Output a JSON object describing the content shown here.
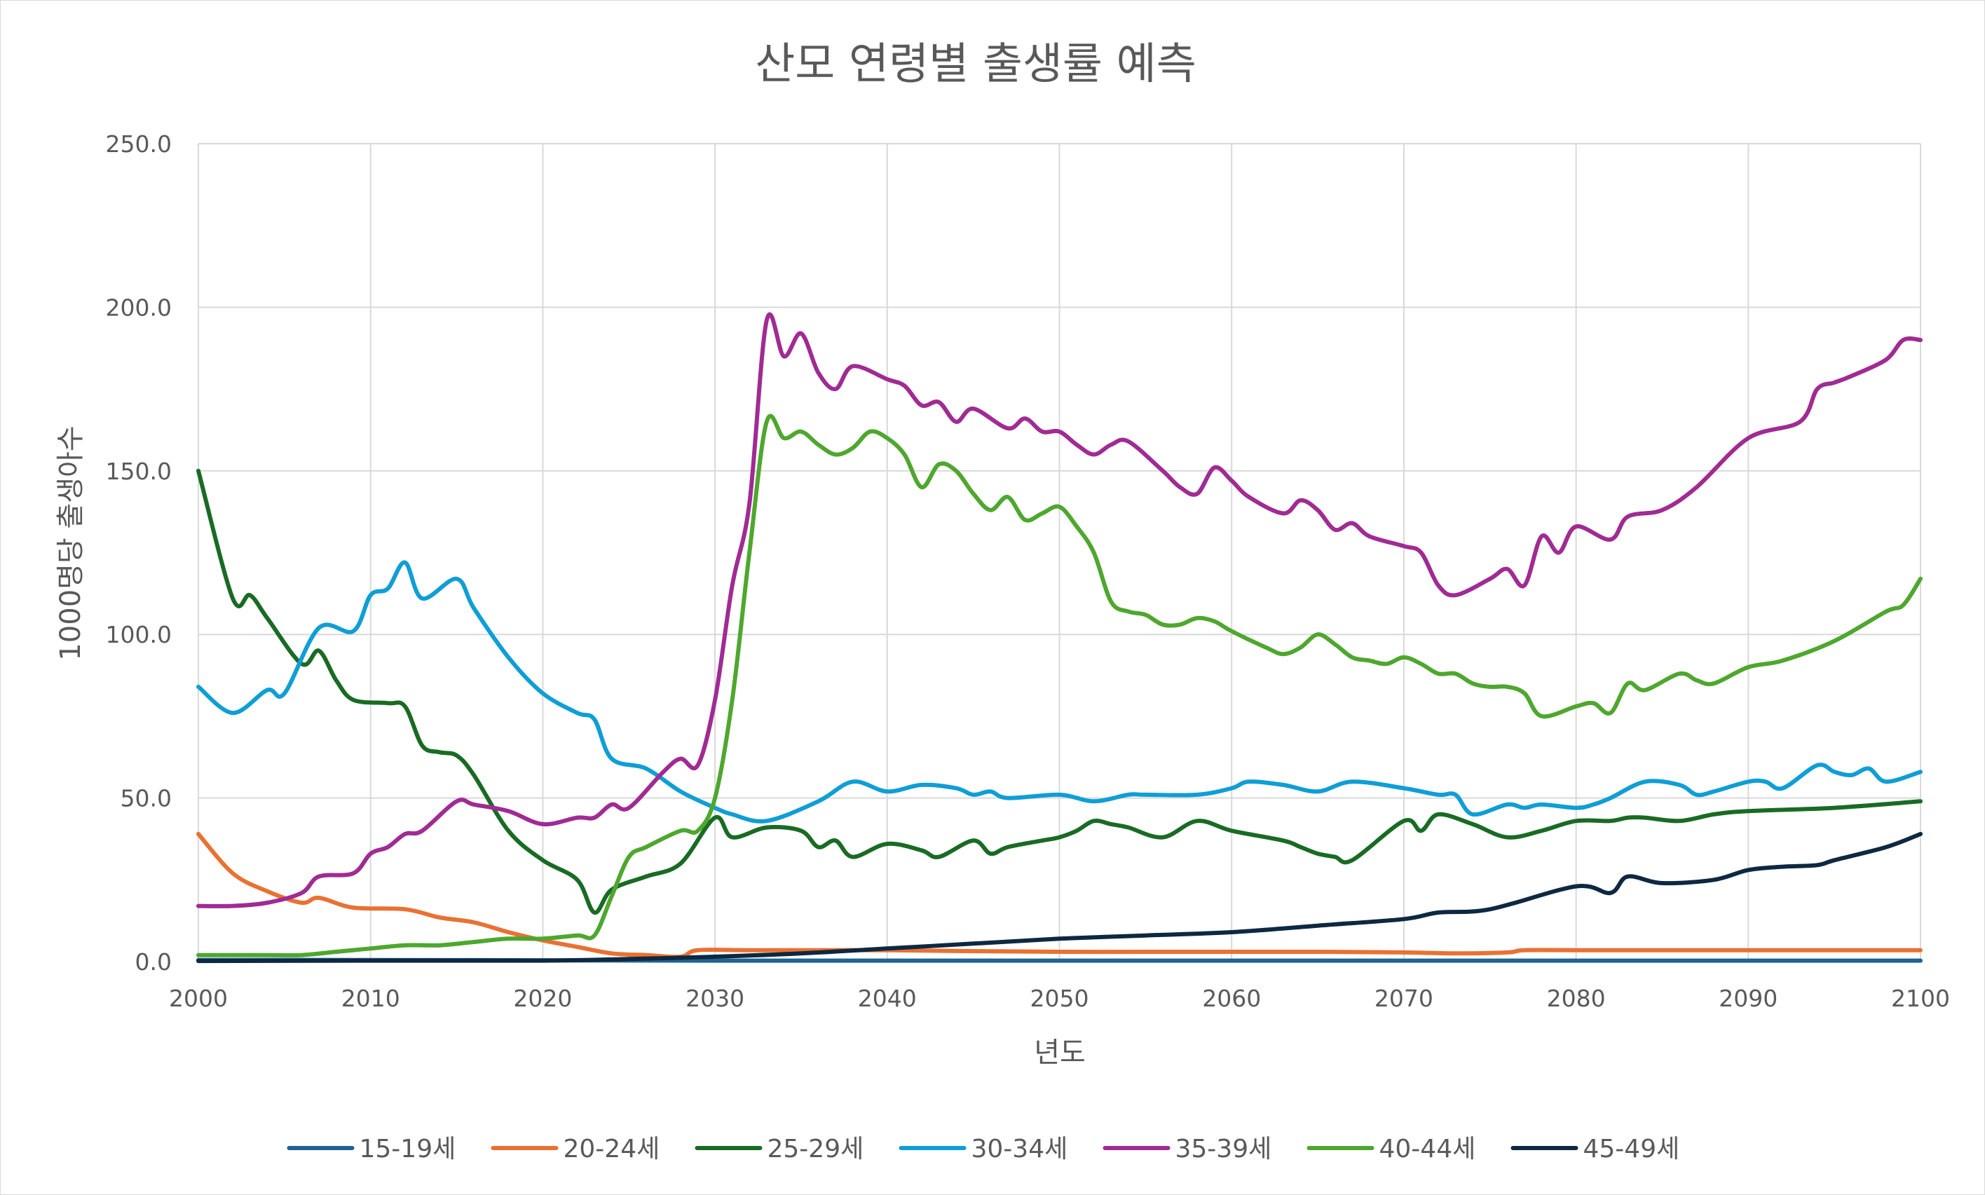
{
  "chart_data": {
    "type": "line",
    "title": "산모 연령별 출생률 예측",
    "xlabel": "년도",
    "ylabel": "1000명당 출생아수",
    "xlim": [
      2000,
      2100
    ],
    "ylim": [
      0,
      250
    ],
    "x_ticks": [
      "2000",
      "2010",
      "2020",
      "2030",
      "2040",
      "2050",
      "2060",
      "2070",
      "2080",
      "2090",
      "2100"
    ],
    "y_ticks": [
      "0.0",
      "50.0",
      "100.0",
      "150.0",
      "200.0",
      "250.0"
    ],
    "legend_position": "bottom",
    "grid": true,
    "series": [
      {
        "name": "15-19세",
        "color": "#1f6391",
        "x": [
          2000,
          2010,
          2020,
          2030,
          2040,
          2050,
          2060,
          2070,
          2080,
          2090,
          2100
        ],
        "y": [
          0.5,
          0.5,
          0.4,
          0.3,
          0.3,
          0.3,
          0.3,
          0.3,
          0.3,
          0.3,
          0.3
        ]
      },
      {
        "name": "20-24세",
        "color": "#e97132",
        "x": [
          2000,
          2002,
          2004,
          2006,
          2007,
          2009,
          2012,
          2014,
          2016,
          2018,
          2020,
          2022,
          2024,
          2026,
          2028,
          2029,
          2032,
          2036,
          2040,
          2045,
          2050,
          2055,
          2060,
          2065,
          2070,
          2073,
          2076,
          2077,
          2080,
          2090,
          2100
        ],
        "y": [
          39,
          27,
          21.5,
          18,
          19.5,
          16.5,
          16,
          13.5,
          12,
          9,
          6.5,
          4.5,
          2.5,
          2,
          1.5,
          3.5,
          3.5,
          3.5,
          3.5,
          3.2,
          3,
          3,
          3,
          3,
          2.8,
          2.5,
          2.8,
          3.5,
          3.5,
          3.5,
          3.5
        ]
      },
      {
        "name": "25-29세",
        "color": "#196b24",
        "x": [
          2000,
          2002,
          2003,
          2004,
          2006,
          2007,
          2008,
          2009,
          2011,
          2012,
          2013,
          2014,
          2015,
          2016,
          2018,
          2020,
          2022,
          2023,
          2024,
          2026,
          2028,
          2030,
          2031,
          2033,
          2035,
          2036,
          2037,
          2038,
          2040,
          2042,
          2043,
          2045,
          2046,
          2047,
          2049,
          2050,
          2051,
          2052,
          2053,
          2054,
          2056,
          2058,
          2060,
          2063,
          2064,
          2065,
          2066,
          2067,
          2070,
          2071,
          2072,
          2074,
          2076,
          2078,
          2080,
          2082,
          2083,
          2084,
          2086,
          2088,
          2090,
          2095,
          2100
        ],
        "y": [
          150,
          111,
          112,
          105,
          91,
          95,
          86,
          80,
          79,
          78,
          66,
          64,
          63,
          57,
          40,
          31,
          25,
          15,
          22,
          26,
          30,
          44,
          38,
          41,
          40,
          35,
          37,
          32,
          36,
          34,
          32,
          37,
          33,
          35,
          37,
          38,
          40,
          43,
          42,
          41,
          38,
          43,
          40,
          37,
          35,
          33,
          32,
          31,
          43,
          40,
          45,
          42,
          38,
          40,
          43,
          43,
          44,
          44,
          43,
          45,
          46,
          47,
          49
        ]
      },
      {
        "name": "30-34세",
        "color": "#0f9ed5",
        "x": [
          2000,
          2002,
          2004,
          2005,
          2007,
          2009,
          2010,
          2011,
          2012,
          2013,
          2015,
          2016,
          2018,
          2020,
          2022,
          2023,
          2024,
          2026,
          2028,
          2030,
          2031,
          2033,
          2036,
          2038,
          2040,
          2042,
          2044,
          2045,
          2046,
          2047,
          2050,
          2052,
          2054,
          2055,
          2058,
          2060,
          2061,
          2063,
          2065,
          2067,
          2070,
          2072,
          2073,
          2074,
          2076,
          2077,
          2078,
          2080,
          2081,
          2082,
          2084,
          2086,
          2087,
          2088,
          2090,
          2091,
          2092,
          2094,
          2095,
          2096,
          2097,
          2098,
          2100
        ],
        "y": [
          84,
          76,
          83,
          82,
          102,
          101,
          112,
          114,
          122,
          111,
          117,
          108,
          93,
          82,
          76,
          74,
          62,
          59,
          52,
          47,
          45,
          43,
          49,
          55,
          52,
          54,
          53,
          51,
          52,
          50,
          51,
          49,
          51,
          51,
          51,
          53,
          55,
          54,
          52,
          55,
          53,
          51,
          51,
          45,
          48,
          47,
          48,
          47,
          48,
          50,
          55,
          54,
          51,
          52,
          55,
          55,
          53,
          60,
          58,
          57,
          59,
          55,
          58
        ]
      },
      {
        "name": "35-39세",
        "color": "#a02b93",
        "x": [
          2000,
          2002,
          2004,
          2006,
          2007,
          2009,
          2010,
          2011,
          2012,
          2013,
          2015,
          2016,
          2018,
          2020,
          2022,
          2023,
          2024,
          2025,
          2027,
          2028,
          2029,
          2030,
          2031,
          2032,
          2033,
          2034,
          2035,
          2036,
          2037,
          2038,
          2040,
          2041,
          2042,
          2043,
          2044,
          2045,
          2047,
          2048,
          2049,
          2050,
          2051,
          2052,
          2053,
          2054,
          2056,
          2057,
          2058,
          2059,
          2060,
          2061,
          2063,
          2064,
          2065,
          2066,
          2067,
          2068,
          2070,
          2071,
          2072,
          2073,
          2075,
          2076,
          2077,
          2078,
          2079,
          2080,
          2082,
          2083,
          2085,
          2087,
          2090,
          2093,
          2094,
          2095,
          2096,
          2098,
          2099,
          2100
        ],
        "y": [
          17,
          17,
          18,
          21,
          26,
          27,
          33,
          35,
          39,
          40,
          49,
          48,
          46,
          42,
          44,
          44,
          48,
          47,
          58,
          62,
          60,
          80,
          115,
          140,
          196,
          185,
          192,
          180,
          175,
          182,
          178,
          176,
          170,
          171,
          165,
          169,
          163,
          166,
          162,
          162,
          158,
          155,
          158,
          159,
          150,
          145,
          143,
          151,
          147,
          142,
          137,
          141,
          138,
          132,
          134,
          130,
          127,
          125,
          115,
          112,
          117,
          120,
          115,
          130,
          125,
          133,
          129,
          136,
          138,
          145,
          160,
          165,
          175,
          177,
          179,
          184,
          190,
          190
        ]
      },
      {
        "name": "40-44세",
        "color": "#4ea72e",
        "x": [
          2000,
          2002,
          2004,
          2006,
          2008,
          2010,
          2012,
          2014,
          2016,
          2018,
          2020,
          2022,
          2023,
          2024,
          2025,
          2026,
          2028,
          2029,
          2030,
          2031,
          2032,
          2033,
          2034,
          2035,
          2036,
          2037,
          2038,
          2039,
          2040,
          2041,
          2042,
          2043,
          2044,
          2045,
          2046,
          2047,
          2048,
          2049,
          2050,
          2051,
          2052,
          2053,
          2054,
          2055,
          2056,
          2057,
          2058,
          2059,
          2060,
          2062,
          2063,
          2064,
          2065,
          2066,
          2067,
          2068,
          2069,
          2070,
          2071,
          2072,
          2073,
          2074,
          2075,
          2076,
          2077,
          2078,
          2080,
          2081,
          2082,
          2083,
          2084,
          2086,
          2087,
          2088,
          2090,
          2092,
          2095,
          2098,
          2099,
          2100
        ],
        "y": [
          2,
          2,
          2,
          2,
          3,
          4,
          5,
          5,
          6,
          7,
          7,
          8,
          8,
          20,
          32,
          35,
          40,
          40,
          50,
          80,
          125,
          165,
          160,
          162,
          158,
          155,
          157,
          162,
          160,
          155,
          145,
          152,
          150,
          143,
          138,
          142,
          135,
          137,
          139,
          133,
          125,
          110,
          107,
          106,
          103,
          103,
          105,
          104,
          101,
          96,
          94,
          96,
          100,
          97,
          93,
          92,
          91,
          93,
          91,
          88,
          88,
          85,
          84,
          84,
          82,
          75,
          78,
          79,
          76,
          85,
          83,
          88,
          86,
          85,
          90,
          92,
          98,
          107,
          109,
          117
        ]
      },
      {
        "name": "45-49세",
        "color": "#0e2841",
        "x": [
          2000,
          2010,
          2020,
          2025,
          2030,
          2035,
          2040,
          2045,
          2050,
          2055,
          2060,
          2065,
          2070,
          2072,
          2075,
          2080,
          2082,
          2083,
          2085,
          2088,
          2090,
          2092,
          2094,
          2095,
          2098,
          2100
        ],
        "y": [
          0.2,
          0.3,
          0.3,
          0.8,
          1.5,
          2.5,
          4,
          5.5,
          7,
          8,
          9,
          11,
          13,
          15,
          16,
          23,
          21,
          26,
          24,
          25,
          28,
          29,
          29.5,
          31,
          35,
          39
        ]
      }
    ]
  }
}
